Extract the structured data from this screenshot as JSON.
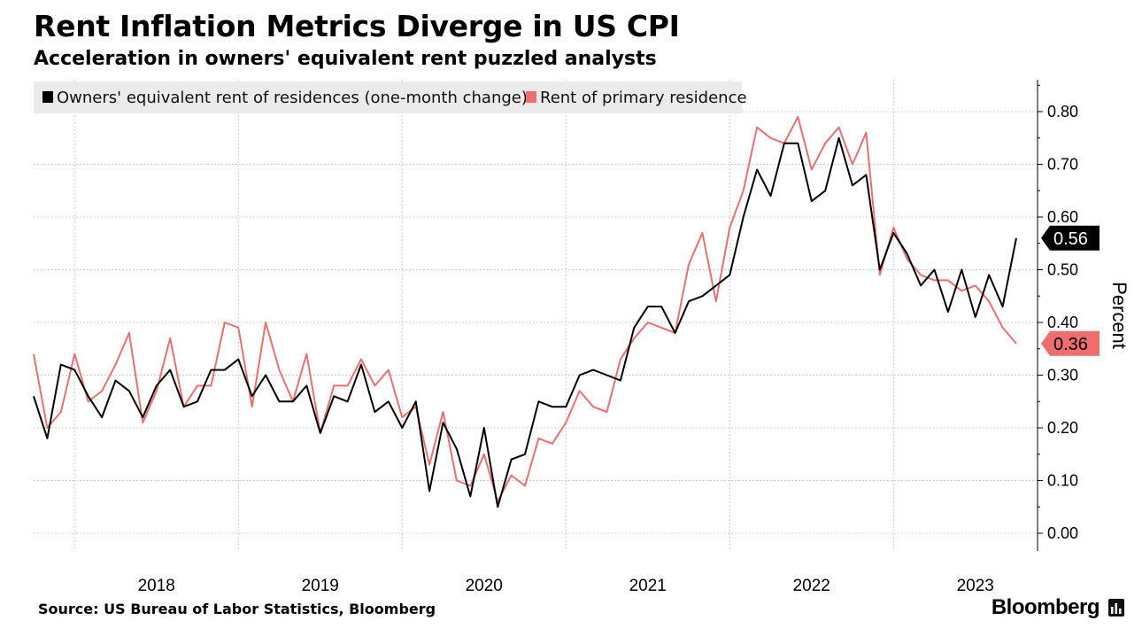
{
  "header": {
    "title": "Rent Inflation Metrics Diverge in US CPI",
    "subtitle": "Acceleration in owners' equivalent rent puzzled analysts"
  },
  "footer": {
    "source": "Source: US Bureau of Labor Statistics, Bloomberg",
    "brand": "Bloomberg"
  },
  "colors": {
    "oer": "#000000",
    "rent": "#ee6e6e",
    "grid": "#cccccc",
    "legend_bg": "#ebebeb"
  },
  "chart_data": {
    "type": "line",
    "title": "Rent Inflation Metrics Diverge in US CPI",
    "subtitle": "Acceleration in owners' equivalent rent puzzled analysts",
    "ylabel": "Percent",
    "ylim": [
      0,
      0.85
    ],
    "yticks": [
      "0.00",
      "0.10",
      "0.20",
      "0.30",
      "0.40",
      "0.50",
      "0.60",
      "0.70",
      "0.80"
    ],
    "xticks": [
      "2018",
      "2019",
      "2020",
      "2021",
      "2022",
      "2023"
    ],
    "x_range": [
      "2017-10",
      "2023-10"
    ],
    "grid": true,
    "legend_position": "top-left",
    "end_labels": [
      "0.56",
      "0.36"
    ],
    "series": [
      {
        "name": "Owners' equivalent rent of residences (one-month change)",
        "color": "#000000",
        "x": [
          "2017-10",
          "2017-11",
          "2017-12",
          "2018-01",
          "2018-02",
          "2018-03",
          "2018-04",
          "2018-05",
          "2018-06",
          "2018-07",
          "2018-08",
          "2018-09",
          "2018-10",
          "2018-11",
          "2018-12",
          "2019-01",
          "2019-02",
          "2019-03",
          "2019-04",
          "2019-05",
          "2019-06",
          "2019-07",
          "2019-08",
          "2019-09",
          "2019-10",
          "2019-11",
          "2019-12",
          "2020-01",
          "2020-02",
          "2020-03",
          "2020-04",
          "2020-05",
          "2020-06",
          "2020-07",
          "2020-08",
          "2020-09",
          "2020-10",
          "2020-11",
          "2020-12",
          "2021-01",
          "2021-02",
          "2021-03",
          "2021-04",
          "2021-05",
          "2021-06",
          "2021-07",
          "2021-08",
          "2021-09",
          "2021-10",
          "2021-11",
          "2021-12",
          "2022-01",
          "2022-02",
          "2022-03",
          "2022-04",
          "2022-05",
          "2022-06",
          "2022-07",
          "2022-08",
          "2022-09",
          "2022-10",
          "2022-11",
          "2022-12",
          "2023-01",
          "2023-02",
          "2023-03",
          "2023-04",
          "2023-05",
          "2023-06",
          "2023-07",
          "2023-08",
          "2023-09",
          "2023-10"
        ],
        "values": [
          0.26,
          0.18,
          0.32,
          0.31,
          0.26,
          0.22,
          0.29,
          0.27,
          0.22,
          0.28,
          0.31,
          0.24,
          0.25,
          0.31,
          0.31,
          0.33,
          0.26,
          0.3,
          0.25,
          0.25,
          0.28,
          0.19,
          0.26,
          0.25,
          0.32,
          0.23,
          0.25,
          0.2,
          0.25,
          0.08,
          0.21,
          0.16,
          0.07,
          0.2,
          0.05,
          0.14,
          0.15,
          0.25,
          0.24,
          0.24,
          0.3,
          0.31,
          0.3,
          0.29,
          0.39,
          0.43,
          0.43,
          0.38,
          0.44,
          0.45,
          0.47,
          0.49,
          0.6,
          0.69,
          0.64,
          0.74,
          0.74,
          0.63,
          0.65,
          0.75,
          0.66,
          0.68,
          0.5,
          0.57,
          0.53,
          0.47,
          0.5,
          0.42,
          0.5,
          0.41,
          0.49,
          0.43,
          0.56
        ]
      },
      {
        "name": "Rent of primary residence",
        "color": "#ee6e6e",
        "x": [
          "2017-10",
          "2017-11",
          "2017-12",
          "2018-01",
          "2018-02",
          "2018-03",
          "2018-04",
          "2018-05",
          "2018-06",
          "2018-07",
          "2018-08",
          "2018-09",
          "2018-10",
          "2018-11",
          "2018-12",
          "2019-01",
          "2019-02",
          "2019-03",
          "2019-04",
          "2019-05",
          "2019-06",
          "2019-07",
          "2019-08",
          "2019-09",
          "2019-10",
          "2019-11",
          "2019-12",
          "2020-01",
          "2020-02",
          "2020-03",
          "2020-04",
          "2020-05",
          "2020-06",
          "2020-07",
          "2020-08",
          "2020-09",
          "2020-10",
          "2020-11",
          "2020-12",
          "2021-01",
          "2021-02",
          "2021-03",
          "2021-04",
          "2021-05",
          "2021-06",
          "2021-07",
          "2021-08",
          "2021-09",
          "2021-10",
          "2021-11",
          "2021-12",
          "2022-01",
          "2022-02",
          "2022-03",
          "2022-04",
          "2022-05",
          "2022-06",
          "2022-07",
          "2022-08",
          "2022-09",
          "2022-10",
          "2022-11",
          "2022-12",
          "2023-01",
          "2023-02",
          "2023-03",
          "2023-04",
          "2023-05",
          "2023-06",
          "2023-07",
          "2023-08",
          "2023-09",
          "2023-10"
        ],
        "values": [
          0.34,
          0.2,
          0.23,
          0.34,
          0.25,
          0.27,
          0.32,
          0.38,
          0.21,
          0.27,
          0.37,
          0.24,
          0.28,
          0.28,
          0.4,
          0.39,
          0.24,
          0.4,
          0.31,
          0.25,
          0.34,
          0.19,
          0.28,
          0.28,
          0.33,
          0.28,
          0.31,
          0.22,
          0.24,
          0.13,
          0.23,
          0.1,
          0.09,
          0.15,
          0.06,
          0.11,
          0.09,
          0.18,
          0.17,
          0.21,
          0.27,
          0.24,
          0.23,
          0.33,
          0.37,
          0.4,
          0.39,
          0.38,
          0.51,
          0.57,
          0.44,
          0.58,
          0.65,
          0.77,
          0.75,
          0.74,
          0.79,
          0.69,
          0.74,
          0.77,
          0.7,
          0.76,
          0.49,
          0.58,
          0.52,
          0.49,
          0.48,
          0.48,
          0.46,
          0.47,
          0.44,
          0.39,
          0.36
        ]
      }
    ]
  }
}
